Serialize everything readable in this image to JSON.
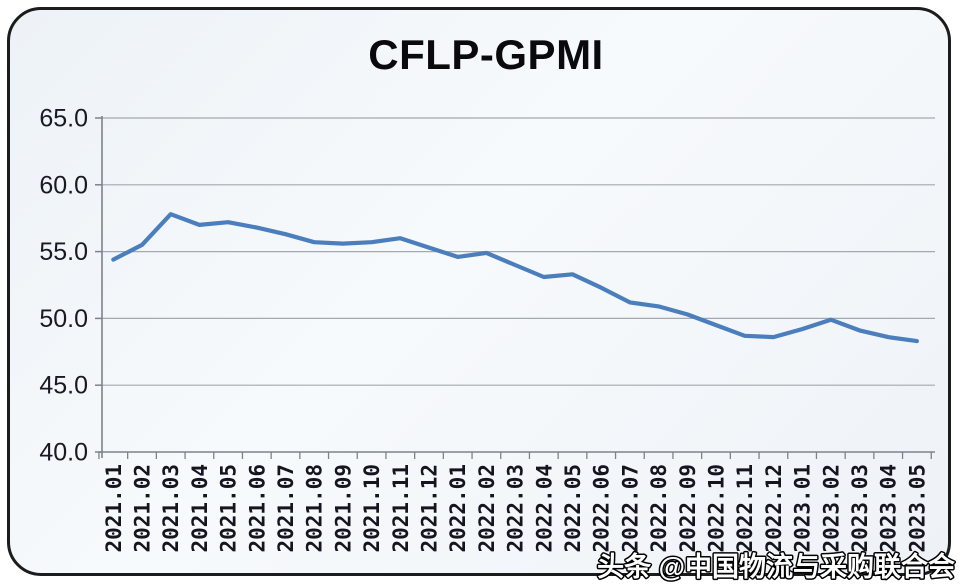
{
  "watermark": {
    "text": "头条 @中国物流与采购联合会"
  },
  "colors": {
    "line": "#4a7ebc",
    "grid": "#a3a9b0",
    "axis": "#7d838b",
    "tick_text": "#15151f",
    "ylabel_text": "#191923",
    "frame_border": "#1c1c1c"
  },
  "chart_data": {
    "type": "line",
    "title": "CFLP-GPMI",
    "xlabel": "",
    "ylabel": "",
    "legend": "none",
    "grid": "horizontal",
    "ylim": [
      40.0,
      65.0
    ],
    "yticks": [
      65.0,
      60.0,
      55.0,
      50.0,
      45.0,
      40.0
    ],
    "ytick_labels": [
      "65.0",
      "60.0",
      "55.0",
      "50.0",
      "45.0",
      "40.0"
    ],
    "categories": [
      "2021.01",
      "2021.02",
      "2021.03",
      "2021.04",
      "2021.05",
      "2021.06",
      "2021.07",
      "2021.08",
      "2021.09",
      "2021.10",
      "2021.11",
      "2021.12",
      "2022.01",
      "2022.02",
      "2022.03",
      "2022.04",
      "2022.05",
      "2022.06",
      "2022.07",
      "2022.08",
      "2022.09",
      "2022.10",
      "2022.11",
      "2022.12",
      "2023.01",
      "2023.02",
      "2023.03",
      "2023.04",
      "2023.05"
    ],
    "series": [
      {
        "name": "CFLP-GPMI",
        "values": [
          54.4,
          55.5,
          57.8,
          57.0,
          57.2,
          56.8,
          56.3,
          55.7,
          55.6,
          55.7,
          56.0,
          55.3,
          54.6,
          54.9,
          54.0,
          53.1,
          53.3,
          52.3,
          51.2,
          50.9,
          50.3,
          49.5,
          48.7,
          48.6,
          49.2,
          49.9,
          49.1,
          48.6,
          48.3
        ]
      }
    ]
  }
}
